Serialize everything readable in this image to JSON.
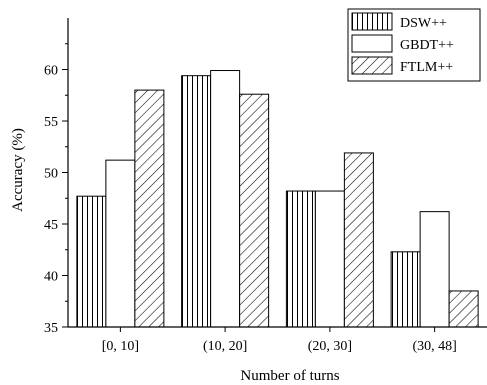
{
  "chart_data": {
    "type": "bar",
    "categories": [
      "[0, 10]",
      "(10, 20]",
      "(20, 30]",
      "(30, 48]"
    ],
    "series": [
      {
        "name": "DSW++",
        "values": [
          47.7,
          59.4,
          48.2,
          42.3
        ],
        "pattern": "vertical-lines"
      },
      {
        "name": "GBDT++",
        "values": [
          51.2,
          59.9,
          48.2,
          46.2
        ],
        "pattern": "none"
      },
      {
        "name": "FTLM++",
        "values": [
          58.0,
          57.6,
          51.9,
          38.5
        ],
        "pattern": "diagonal-lines"
      }
    ],
    "xlabel": "Number of turns",
    "ylabel": "Accuracy (%)",
    "ylim": [
      35,
      65
    ],
    "yticks": [
      "35",
      "40",
      "45",
      "50",
      "55",
      "60"
    ],
    "grid": false,
    "legend_position": "top-right"
  }
}
